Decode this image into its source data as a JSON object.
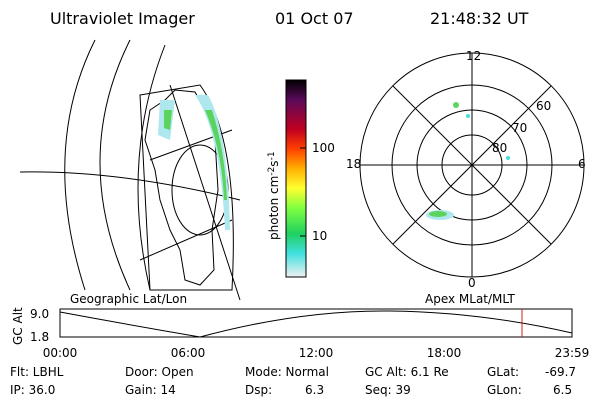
{
  "header": {
    "title": "Ultraviolet Imager",
    "date": "01 Oct 07",
    "time": "21:48:32 UT"
  },
  "colorbar": {
    "label": {
      "base": "photon cm",
      "exp1": "-2",
      "mid": "s",
      "exp2": "-1"
    },
    "ticks": [
      "100",
      "10"
    ]
  },
  "polar": {
    "mlt_labels": {
      "top": "12",
      "left": "18",
      "right": "6",
      "bottom": "0"
    },
    "lat_labels": [
      "60",
      "70",
      "80"
    ]
  },
  "orbit_plot": {
    "left_title": "Geographic Lat/Lon",
    "right_title": "Apex MLat/MLT",
    "y_label": "GC Alt",
    "y_ticks": [
      "9.0",
      "1.8"
    ],
    "x_ticks": [
      "00:00",
      "06:00",
      "12:00",
      "18:00",
      "23:59"
    ]
  },
  "footer": {
    "flt": "Flt: LBHL",
    "ip": "IP: 36.0",
    "door": "Door: Open",
    "gain": "Gain: 14",
    "mode": "Mode: Normal",
    "dsp_label": "Dsp:",
    "dsp_value": "6.3",
    "gc_alt": "GC Alt: 6.1 Re",
    "seq": "Seq: 39",
    "glat_label": "GLat:",
    "glat_value": "-69.7",
    "glon_label": "GLon:",
    "glon_value": "6.5"
  }
}
